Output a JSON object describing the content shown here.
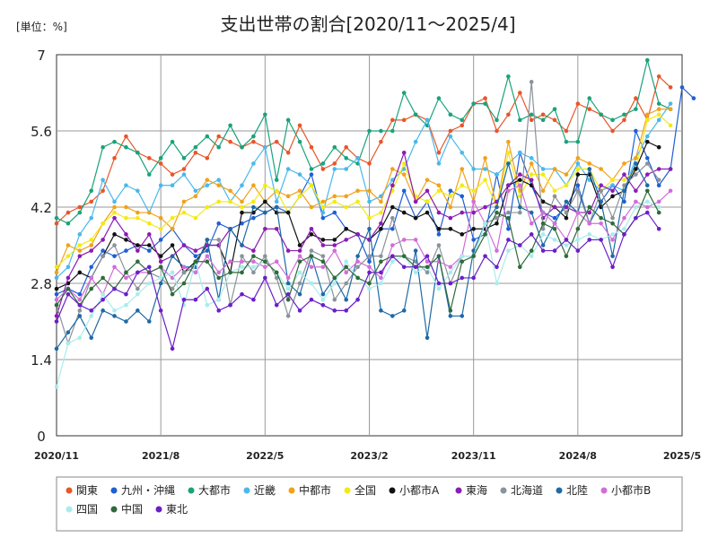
{
  "chart_data": {
    "type": "line",
    "title": "支出世帯の割合[2020/11～2025/4]",
    "unit_label": "[単位：%]",
    "ylim": [
      0,
      7
    ],
    "y_ticks": [
      "0",
      "1.4",
      "2.8",
      "4.2",
      "5.6",
      "7"
    ],
    "x_tick_labels": [
      "2020/11",
      "2021/8",
      "2022/5",
      "2023/2",
      "2023/11",
      "2024/8",
      "2025/5"
    ],
    "x_tick_month_index": [
      0,
      9,
      18,
      27,
      36,
      45,
      54
    ],
    "grid": true,
    "legend_position": "bottom",
    "start_month": "2020/11",
    "series": [
      {
        "name": "関東",
        "color": "#e8562a",
        "values": [
          3.9,
          4.1,
          4.2,
          4.3,
          4.5,
          5.1,
          5.5,
          5.2,
          5.1,
          5.0,
          4.8,
          4.9,
          5.2,
          5.1,
          5.5,
          5.4,
          5.3,
          5.4,
          5.3,
          5.4,
          5.2,
          5.7,
          5.3,
          4.9,
          5.0,
          5.3,
          5.1,
          5.0,
          5.4,
          5.8,
          5.8,
          5.9,
          5.8,
          5.2,
          5.6,
          5.7,
          6.1,
          6.2,
          5.6,
          5.9,
          6.3,
          5.8,
          5.9,
          5.8,
          5.6,
          6.1,
          6.0,
          5.9,
          5.6,
          5.8,
          6.2,
          5.8,
          6.6,
          6.4
        ]
      },
      {
        "name": "九州・沖縄",
        "color": "#1f5fd6",
        "values": [
          2.6,
          2.7,
          2.6,
          3.1,
          3.4,
          3.3,
          3.4,
          3.5,
          3.4,
          3.6,
          3.8,
          3.5,
          3.3,
          3.4,
          3.9,
          3.8,
          3.9,
          4.0,
          4.1,
          4.2,
          4.1,
          4.4,
          4.8,
          4.0,
          4.1,
          3.8,
          3.7,
          3.2,
          3.8,
          3.8,
          4.5,
          4.0,
          4.3,
          3.7,
          4.5,
          4.4,
          3.6,
          3.7,
          4.8,
          3.8,
          5.2,
          4.6,
          4.1,
          4.0,
          4.2,
          4.6,
          3.9,
          4.3,
          4.6,
          4.3,
          5.6,
          5.1,
          4.6,
          4.9,
          6.4,
          6.2
        ]
      },
      {
        "name": "大都市",
        "color": "#1aa37a",
        "values": [
          4.0,
          3.9,
          4.1,
          4.5,
          5.3,
          5.4,
          5.3,
          5.2,
          4.8,
          5.1,
          5.4,
          5.1,
          5.3,
          5.5,
          5.3,
          5.7,
          5.3,
          5.5,
          5.9,
          4.7,
          5.8,
          5.4,
          4.9,
          5.0,
          5.3,
          5.1,
          5.0,
          5.6,
          5.6,
          5.6,
          6.3,
          5.9,
          5.7,
          6.2,
          5.9,
          5.8,
          6.1,
          6.1,
          5.8,
          6.6,
          5.8,
          5.9,
          5.8,
          6.0,
          5.4,
          5.4,
          6.2,
          5.9,
          5.8,
          5.9,
          6.0,
          6.9,
          6.1,
          6.0
        ]
      },
      {
        "name": "近畿",
        "color": "#4ab8ec",
        "values": [
          2.9,
          3.1,
          3.7,
          4.0,
          4.7,
          4.3,
          4.6,
          4.5,
          4.1,
          4.6,
          4.6,
          4.8,
          4.5,
          4.6,
          4.7,
          4.3,
          4.6,
          5.0,
          5.3,
          4.3,
          4.9,
          4.8,
          4.6,
          4.1,
          4.9,
          4.9,
          5.1,
          4.3,
          4.4,
          4.7,
          4.9,
          5.4,
          5.8,
          5.0,
          5.5,
          5.2,
          4.9,
          4.9,
          4.8,
          5.0,
          5.2,
          5.1,
          4.9,
          4.9,
          4.6,
          5.0,
          4.7,
          4.5,
          4.6,
          4.5,
          5.1,
          5.5,
          5.8,
          6.1
        ]
      },
      {
        "name": "中都市",
        "color": "#f0a21b",
        "values": [
          3.0,
          3.5,
          3.4,
          3.5,
          3.9,
          4.2,
          4.2,
          4.1,
          4.1,
          4.0,
          3.8,
          4.3,
          4.4,
          4.7,
          4.6,
          4.5,
          4.3,
          4.6,
          4.3,
          4.5,
          4.4,
          4.5,
          4.2,
          4.3,
          4.4,
          4.4,
          4.5,
          4.5,
          4.3,
          4.9,
          4.8,
          4.3,
          4.7,
          4.6,
          4.2,
          4.9,
          4.3,
          5.1,
          4.2,
          5.4,
          4.5,
          5.0,
          4.5,
          4.9,
          4.8,
          5.1,
          5.0,
          4.9,
          4.7,
          5.0,
          5.1,
          5.9,
          6.0,
          6.0
        ]
      },
      {
        "name": "全国",
        "color": "#f3ea14",
        "values": [
          3.1,
          3.3,
          3.5,
          3.6,
          3.9,
          4.1,
          4.0,
          4.0,
          3.9,
          3.8,
          4.0,
          4.1,
          4.0,
          4.2,
          4.3,
          4.3,
          4.2,
          4.3,
          4.6,
          4.5,
          4.1,
          4.4,
          4.6,
          4.2,
          4.3,
          4.2,
          4.3,
          4.0,
          4.1,
          4.5,
          5.0,
          4.4,
          4.3,
          4.5,
          4.4,
          4.6,
          4.5,
          4.7,
          4.2,
          5.2,
          4.4,
          4.8,
          4.8,
          4.5,
          4.6,
          4.9,
          4.9,
          4.5,
          4.7,
          4.7,
          4.9,
          5.8,
          5.9,
          5.7
        ]
      },
      {
        "name": "小都市A",
        "color": "#111111",
        "values": [
          2.7,
          2.8,
          3.0,
          2.9,
          3.3,
          3.7,
          3.6,
          3.5,
          3.5,
          3.3,
          3.5,
          3.0,
          3.2,
          3.5,
          3.5,
          3.0,
          4.1,
          4.1,
          4.3,
          4.1,
          4.1,
          3.5,
          3.7,
          3.6,
          3.6,
          3.8,
          3.7,
          3.6,
          3.8,
          4.2,
          4.1,
          4.0,
          4.1,
          3.8,
          3.8,
          3.7,
          3.8,
          3.8,
          3.9,
          4.6,
          4.7,
          4.6,
          4.3,
          4.2,
          4.0,
          4.8,
          4.8,
          4.2,
          4.4,
          4.5,
          4.9,
          5.4,
          5.3
        ]
      },
      {
        "name": "東海",
        "color": "#8b1cb4",
        "values": [
          2.2,
          2.9,
          3.3,
          3.4,
          3.6,
          4.0,
          3.7,
          3.4,
          3.7,
          3.2,
          3.3,
          3.5,
          3.4,
          3.5,
          3.5,
          3.8,
          3.5,
          3.4,
          3.8,
          3.8,
          3.4,
          3.4,
          3.8,
          3.5,
          3.5,
          3.6,
          3.7,
          3.6,
          3.9,
          4.6,
          5.2,
          4.3,
          4.5,
          4.1,
          4.0,
          4.1,
          4.1,
          4.2,
          4.3,
          4.6,
          4.8,
          4.7,
          4.0,
          4.2,
          4.2,
          4.1,
          4.1,
          4.6,
          4.5,
          4.8,
          4.5,
          4.8,
          4.9,
          4.9
        ]
      },
      {
        "name": "北海道",
        "color": "#8a929a",
        "values": [
          2.4,
          1.7,
          2.3,
          2.9,
          3.3,
          3.5,
          3.0,
          2.7,
          3.0,
          2.9,
          2.7,
          3.0,
          3.1,
          3.6,
          3.6,
          2.4,
          3.3,
          3.0,
          3.3,
          2.9,
          2.2,
          2.8,
          3.4,
          3.3,
          2.5,
          2.8,
          3.1,
          3.3,
          3.3,
          4.0,
          3.3,
          3.2,
          3.0,
          3.5,
          2.8,
          3.3,
          3.3,
          3.9,
          4.0,
          4.1,
          4.1,
          6.5,
          3.8,
          4.4,
          4.1,
          4.5,
          3.9,
          4.5,
          4.0,
          4.6,
          4.8,
          5.0,
          4.7
        ]
      },
      {
        "name": "北陸",
        "color": "#1e6aa6",
        "values": [
          1.6,
          1.9,
          2.2,
          1.8,
          2.3,
          2.2,
          2.1,
          2.3,
          2.1,
          2.8,
          3.3,
          3.1,
          3.1,
          3.6,
          2.5,
          3.8,
          3.5,
          4.2,
          4.1,
          4.2,
          2.8,
          2.6,
          3.3,
          2.6,
          2.9,
          2.5,
          3.3,
          3.8,
          2.3,
          2.2,
          2.3,
          3.4,
          1.8,
          3.3,
          2.2,
          2.2,
          3.4,
          3.9,
          4.2,
          5.0,
          4.2,
          4.1,
          3.5,
          3.9,
          4.3,
          4.1,
          4.9,
          4.3,
          3.3,
          4.5,
          5.0,
          4.6
        ]
      },
      {
        "name": "小都市B",
        "color": "#d26ed8",
        "values": [
          2.5,
          2.7,
          2.5,
          2.9,
          2.6,
          3.1,
          2.9,
          3.0,
          3.0,
          3.1,
          2.9,
          3.1,
          3.0,
          3.3,
          3.0,
          3.2,
          3.2,
          3.2,
          3.1,
          3.2,
          2.9,
          3.3,
          3.1,
          3.1,
          3.4,
          3.0,
          3.2,
          3.1,
          2.9,
          3.5,
          3.6,
          3.6,
          3.2,
          3.2,
          3.1,
          3.3,
          4.3,
          3.9,
          3.4,
          4.5,
          4.6,
          3.9,
          4.1,
          3.9,
          3.6,
          4.1,
          3.9,
          3.9,
          3.6,
          4.0,
          4.3,
          4.2,
          4.3,
          4.5
        ]
      },
      {
        "name": "四国",
        "color": "#a9ecec",
        "values": [
          0.9,
          1.7,
          1.8,
          2.2,
          2.6,
          2.3,
          2.4,
          2.6,
          2.8,
          2.9,
          3.0,
          2.4,
          3.2,
          2.4,
          2.5,
          3.0,
          3.1,
          3.1,
          3.2,
          3.0,
          2.7,
          3.0,
          2.8,
          2.5,
          2.8,
          3.2,
          2.9,
          2.7,
          2.8,
          3.2,
          3.3,
          3.0,
          3.1,
          2.7,
          3.0,
          3.3,
          3.3,
          3.9,
          2.8,
          3.4,
          3.5,
          3.3,
          3.7,
          3.6,
          3.5,
          3.6,
          3.7,
          3.6,
          3.7,
          3.8,
          4.2,
          4.3,
          4.2
        ]
      },
      {
        "name": "中国",
        "color": "#2e6b3a",
        "values": [
          2.4,
          2.7,
          2.4,
          2.7,
          2.9,
          2.7,
          3.0,
          3.2,
          3.0,
          3.1,
          2.6,
          2.8,
          3.2,
          3.2,
          2.9,
          3.0,
          3.0,
          3.3,
          3.2,
          3.0,
          2.5,
          3.2,
          3.3,
          3.2,
          2.9,
          3.1,
          2.9,
          2.8,
          3.2,
          3.3,
          3.3,
          3.1,
          3.1,
          3.3,
          2.3,
          3.2,
          3.3,
          3.7,
          4.1,
          4.0,
          3.1,
          3.4,
          3.9,
          3.8,
          3.3,
          3.8,
          4.2,
          4.0,
          3.9,
          3.7,
          4.0,
          4.5,
          4.1
        ]
      },
      {
        "name": "東北",
        "color": "#6a1fc8",
        "values": [
          2.1,
          2.6,
          2.4,
          2.3,
          2.5,
          2.7,
          2.6,
          3.0,
          3.1,
          2.3,
          1.6,
          2.5,
          2.5,
          2.7,
          2.3,
          2.4,
          2.6,
          2.5,
          2.9,
          2.4,
          2.6,
          2.3,
          2.5,
          2.4,
          2.3,
          2.3,
          2.5,
          3.0,
          3.0,
          3.3,
          3.1,
          3.1,
          3.3,
          2.8,
          2.8,
          2.9,
          2.9,
          3.3,
          3.1,
          3.6,
          3.5,
          3.7,
          3.4,
          3.4,
          3.6,
          3.4,
          3.6,
          3.6,
          3.1,
          3.7,
          4.0,
          4.1,
          3.8
        ]
      }
    ]
  }
}
